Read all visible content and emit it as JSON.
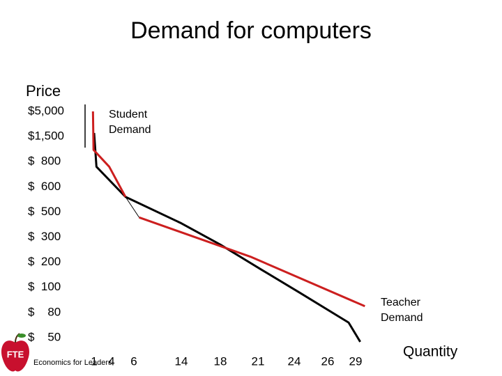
{
  "chart_data": {
    "type": "line",
    "title": "Demand for computers",
    "y_label": "Price",
    "x_label": "Quantity",
    "yticks": [
      {
        "value": 5000,
        "label": "$5,000"
      },
      {
        "value": 1500,
        "label": "$1,500"
      },
      {
        "value": 800,
        "label": "$  800"
      },
      {
        "value": 600,
        "label": "$  600"
      },
      {
        "value": 500,
        "label": "$  500"
      },
      {
        "value": 300,
        "label": "$  300"
      },
      {
        "value": 200,
        "label": "$  200"
      },
      {
        "value": 100,
        "label": "$  100"
      },
      {
        "value": 80,
        "label": "$    80"
      },
      {
        "value": 50,
        "label": "$    50"
      }
    ],
    "xticks": [
      1,
      4,
      6,
      14,
      18,
      21,
      24,
      26,
      29
    ],
    "series": [
      {
        "name": "Student Demand",
        "color": "#000000",
        "x": [
          1,
          1.4,
          5.25,
          14,
          18,
          21.3,
          24.3,
          28.25,
          29.5
        ],
        "values": [
          2000,
          760,
          560,
          410,
          270,
          170,
          96,
          68,
          45
        ]
      },
      {
        "name": "Teacher Demand",
        "color": "#cc1f1f",
        "x": [
          0.8,
          0.9,
          3.6,
          5.25,
          null,
          6.9,
          20.4,
          30
        ],
        "values": [
          5000,
          1130,
          760,
          560,
          null,
          456,
          222,
          85
        ]
      }
    ],
    "logo": "FTE",
    "footer": "Economics for Leaders"
  }
}
